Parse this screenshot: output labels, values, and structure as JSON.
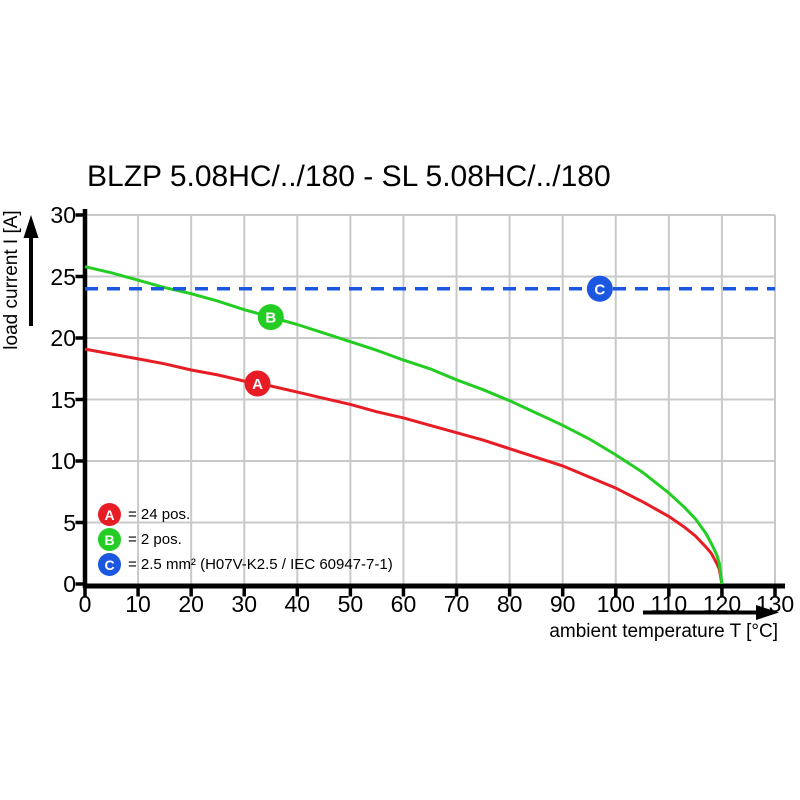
{
  "title": "BLZP 5.08HC/../180 - SL 5.08HC/../180",
  "colors": {
    "red": "#e81c24",
    "green": "#23cd23",
    "blue": "#1b57e0",
    "grid": "#c9c9c9",
    "axis": "#000000",
    "marker_text": "#ffffff"
  },
  "axes": {
    "x": {
      "label": "ambient temperature T [°C]",
      "min": 0,
      "max": 130,
      "ticks": [
        0,
        10,
        20,
        30,
        40,
        50,
        60,
        70,
        80,
        90,
        100,
        110,
        120,
        130
      ]
    },
    "y": {
      "label": "load current I [A]",
      "min": 0,
      "max": 30,
      "ticks": [
        0,
        5,
        10,
        15,
        20,
        25,
        30
      ]
    }
  },
  "legend": {
    "items": [
      {
        "letter": "A",
        "color": "#e81c24",
        "label": "= 24 pos."
      },
      {
        "letter": "B",
        "color": "#23cd23",
        "label": "= 2 pos."
      },
      {
        "letter": "C",
        "color": "#1b57e0",
        "label": "= 2.5 mm² (H07V-K2.5 / IEC 60947-7-1)"
      }
    ]
  },
  "chart_data": {
    "type": "line",
    "title": "BLZP 5.08HC/../180 - SL 5.08HC/../180",
    "xlabel": "ambient temperature T [°C]",
    "ylabel": "load current I [A]",
    "xlim": [
      0,
      130
    ],
    "ylim": [
      0,
      30
    ],
    "grid": true,
    "legend_position": "inside bottom-left",
    "series": [
      {
        "name": "A = 24 pos.",
        "color": "#e81c24",
        "style": "solid",
        "points": [
          [
            0,
            19.1
          ],
          [
            5,
            18.7
          ],
          [
            10,
            18.3
          ],
          [
            15,
            17.9
          ],
          [
            20,
            17.4
          ],
          [
            25,
            17.0
          ],
          [
            30,
            16.5
          ],
          [
            35,
            16.1
          ],
          [
            40,
            15.6
          ],
          [
            45,
            15.1
          ],
          [
            50,
            14.6
          ],
          [
            55,
            14.0
          ],
          [
            60,
            13.5
          ],
          [
            65,
            12.9
          ],
          [
            70,
            12.3
          ],
          [
            75,
            11.7
          ],
          [
            80,
            11.0
          ],
          [
            85,
            10.3
          ],
          [
            90,
            9.6
          ],
          [
            95,
            8.7
          ],
          [
            100,
            7.8
          ],
          [
            105,
            6.7
          ],
          [
            110,
            5.5
          ],
          [
            113,
            4.6
          ],
          [
            115,
            3.9
          ],
          [
            117,
            3.0
          ],
          [
            118,
            2.5
          ],
          [
            119,
            1.7
          ],
          [
            119.5,
            1.2
          ],
          [
            120,
            0
          ]
        ]
      },
      {
        "name": "B = 2 pos.",
        "color": "#23cd23",
        "style": "solid",
        "points": [
          [
            0,
            25.8
          ],
          [
            5,
            25.3
          ],
          [
            10,
            24.7
          ],
          [
            15,
            24.1
          ],
          [
            20,
            23.6
          ],
          [
            25,
            23.0
          ],
          [
            30,
            22.3
          ],
          [
            35,
            21.7
          ],
          [
            40,
            21.1
          ],
          [
            45,
            20.4
          ],
          [
            50,
            19.7
          ],
          [
            55,
            19.0
          ],
          [
            60,
            18.2
          ],
          [
            65,
            17.5
          ],
          [
            70,
            16.6
          ],
          [
            75,
            15.8
          ],
          [
            80,
            14.9
          ],
          [
            85,
            13.9
          ],
          [
            90,
            12.9
          ],
          [
            95,
            11.8
          ],
          [
            100,
            10.5
          ],
          [
            105,
            9.1
          ],
          [
            110,
            7.4
          ],
          [
            113,
            6.2
          ],
          [
            115,
            5.3
          ],
          [
            117,
            4.1
          ],
          [
            118,
            3.3
          ],
          [
            119,
            2.4
          ],
          [
            119.5,
            1.7
          ],
          [
            120,
            0
          ]
        ]
      },
      {
        "name": "C = 2.5 mm² (H07V-K2.5 / IEC 60947-7-1)",
        "color": "#1b57e0",
        "style": "dashed",
        "points": [
          [
            0,
            24
          ],
          [
            130,
            24
          ]
        ]
      }
    ],
    "markers": [
      {
        "letter": "A",
        "x": 32.5,
        "y": 16.3,
        "color": "#e81c24"
      },
      {
        "letter": "B",
        "x": 35,
        "y": 21.7,
        "color": "#23cd23"
      },
      {
        "letter": "C",
        "x": 97,
        "y": 24,
        "color": "#1b57e0"
      }
    ]
  }
}
